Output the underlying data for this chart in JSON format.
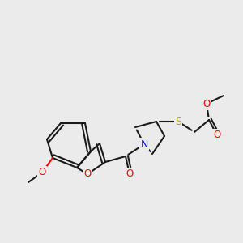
{
  "background_color": "#ebebeb",
  "bond_color": "#1a1a1a",
  "atom_colors": {
    "O": "#ff0000",
    "N": "#0000ee",
    "S": "#aaaa00",
    "C": "#1a1a1a"
  },
  "figsize": [
    3.0,
    3.0
  ],
  "dpi": 100,
  "bond_width": 1.5,
  "font_size": 9.5
}
